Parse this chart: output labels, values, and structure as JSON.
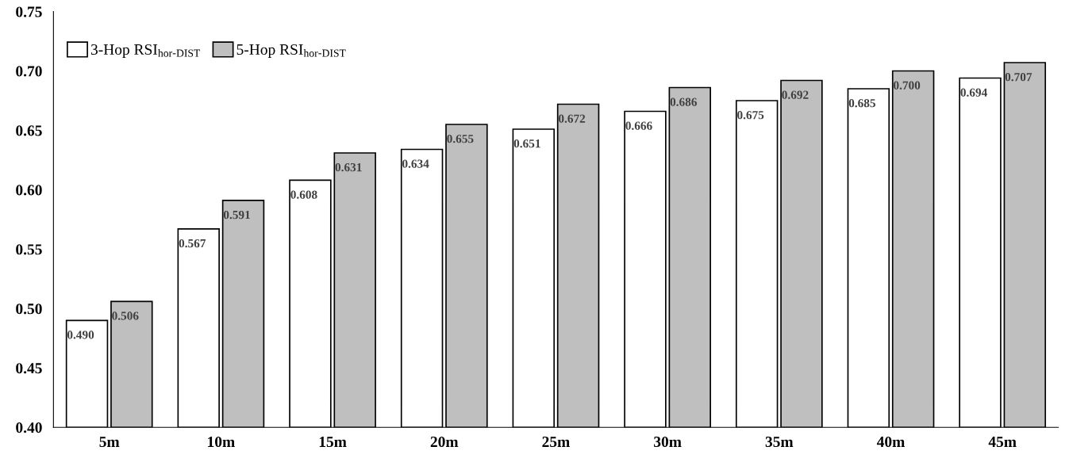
{
  "chart_data": {
    "type": "bar",
    "categories": [
      "5m",
      "10m",
      "15m",
      "20m",
      "25m",
      "30m",
      "35m",
      "40m",
      "45m"
    ],
    "series": [
      {
        "name": "3-Hop RSI$_{hor-DIST}$",
        "color": "#ffffff",
        "values": [
          0.49,
          0.567,
          0.608,
          0.634,
          0.651,
          0.666,
          0.675,
          0.685,
          0.694
        ],
        "value_labels": [
          "0.490",
          "0.567",
          "0.608",
          "0.634",
          "0.651",
          "0.666",
          "0.675",
          "0.685",
          "0.694"
        ]
      },
      {
        "name": "5-Hop RSI$_{hor-DIST}$",
        "color": "#bfbfbf",
        "values": [
          0.506,
          0.591,
          0.631,
          0.655,
          0.672,
          0.686,
          0.692,
          0.7,
          0.707
        ],
        "value_labels": [
          "0.506",
          "0.591",
          "0.631",
          "0.655",
          "0.672",
          "0.686",
          "0.692",
          "0.700",
          "0.707"
        ]
      }
    ],
    "ylim": [
      0.4,
      0.75
    ],
    "yticks": [
      {
        "value": 0.4,
        "label": "0.40"
      },
      {
        "value": 0.45,
        "label": "0.45"
      },
      {
        "value": 0.5,
        "label": "0.50"
      },
      {
        "value": 0.55,
        "label": "0.55"
      },
      {
        "value": 0.6,
        "label": "0.60"
      },
      {
        "value": 0.65,
        "label": "0.65"
      },
      {
        "value": 0.7,
        "label": "0.70"
      },
      {
        "value": 0.75,
        "label": "0.75"
      }
    ],
    "grid": false,
    "legend": "top left"
  }
}
